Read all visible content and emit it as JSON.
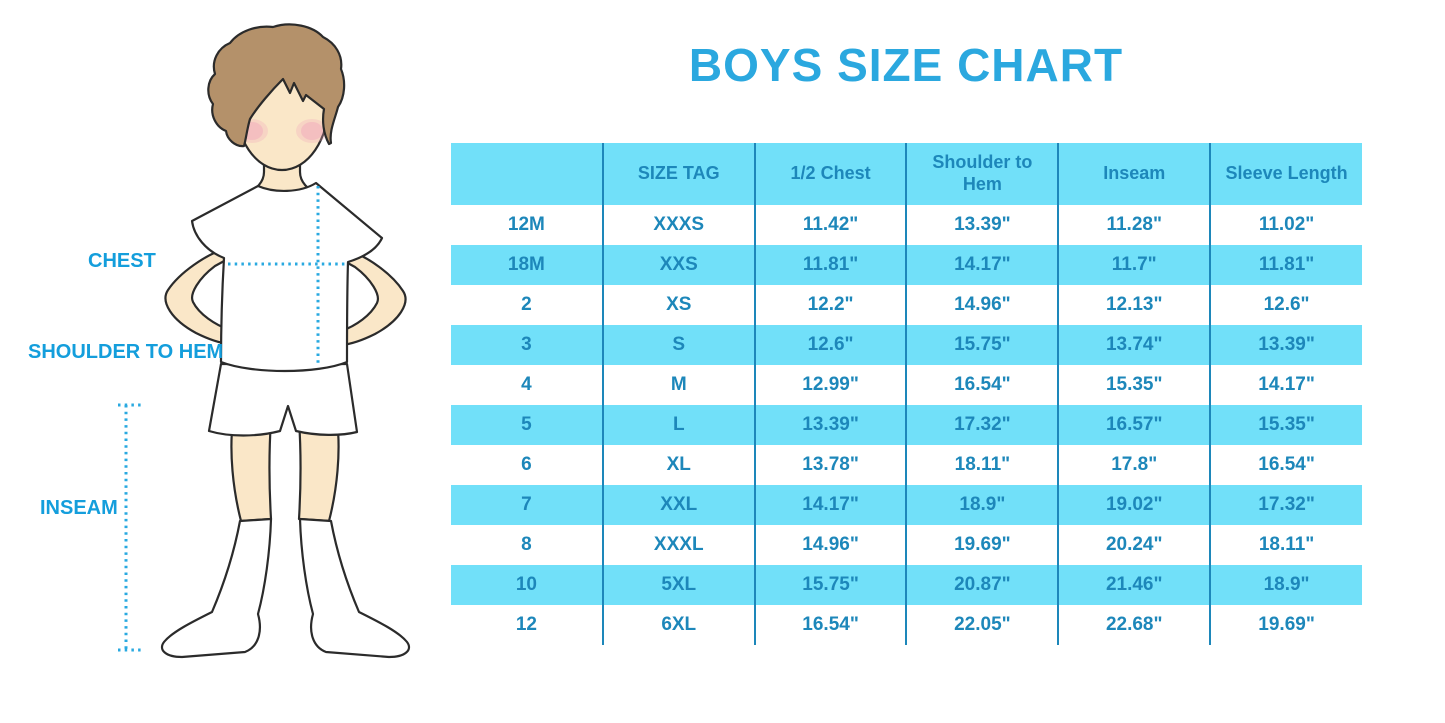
{
  "title": "BOYS SIZE CHART",
  "figure": {
    "labels": {
      "chest": "CHEST",
      "shoulder_to_hem": "SHOULDER TO HEM",
      "inseam": "INSEAM"
    },
    "illustration": "boy-with-hands-on-hips-wearing-tshirt-shorts-knee-socks"
  },
  "colors": {
    "title_blue": "#2BA8DF",
    "label_blue": "#149EDC",
    "dotted_blue": "#29A9E0",
    "band_cyan": "#71E0F9",
    "table_text": "#1D87BA",
    "line_blue": "#1D87BA",
    "skin": "#FAE7C8",
    "hair": "#B4916A",
    "cheek": "#F2A9BC",
    "outline": "#2B2B2B",
    "garment_white": "#FFFFFF"
  },
  "chart_data": {
    "type": "table",
    "title": "BOYS SIZE CHART",
    "columns": [
      "",
      "SIZE TAG",
      "1/2 Chest",
      "Shoulder to Hem",
      "Inseam",
      "Sleeve Length"
    ],
    "rows": [
      [
        "12M",
        "XXXS",
        "11.42\"",
        "13.39\"",
        "11.28\"",
        "11.02\""
      ],
      [
        "18M",
        "XXS",
        "11.81\"",
        "14.17\"",
        "11.7\"",
        "11.81\""
      ],
      [
        "2",
        "XS",
        "12.2\"",
        "14.96\"",
        "12.13\"",
        "12.6\""
      ],
      [
        "3",
        "S",
        "12.6\"",
        "15.75\"",
        "13.74\"",
        "13.39\""
      ],
      [
        "4",
        "M",
        "12.99\"",
        "16.54\"",
        "15.35\"",
        "14.17\""
      ],
      [
        "5",
        "L",
        "13.39\"",
        "17.32\"",
        "16.57\"",
        "15.35\""
      ],
      [
        "6",
        "XL",
        "13.78\"",
        "18.11\"",
        "17.8\"",
        "16.54\""
      ],
      [
        "7",
        "XXL",
        "14.17\"",
        "18.9\"",
        "19.02\"",
        "17.32\""
      ],
      [
        "8",
        "XXXL",
        "14.96\"",
        "19.69\"",
        "20.24\"",
        "18.11\""
      ],
      [
        "10",
        "5XL",
        "15.75\"",
        "20.87\"",
        "21.46\"",
        "18.9\""
      ],
      [
        "12",
        "6XL",
        "16.54\"",
        "22.05\"",
        "22.68\"",
        "19.69\""
      ]
    ],
    "striping": "header and alternate rows light cyan, others white",
    "grid": "vertical separators only"
  }
}
